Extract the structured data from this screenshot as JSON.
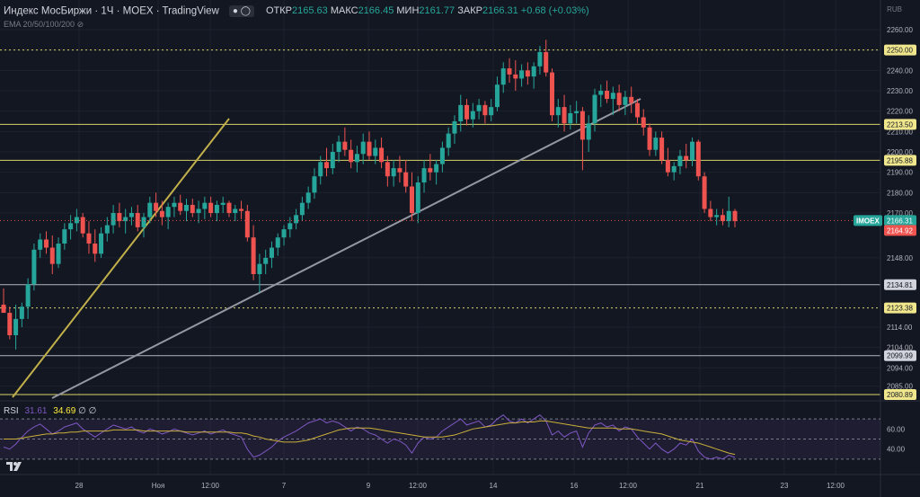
{
  "header": {
    "title": "Индекс МосБиржи · 1Ч · MOEX · TradingView",
    "open_label": "ОТКР",
    "open_value": "2165.63",
    "high_label": "МАКС",
    "high_value": "2166.45",
    "low_label": "МИН",
    "low_value": "2161.77",
    "close_label": "ЗАКР",
    "close_value": "2166.31",
    "change": "+0.68 (+0.03%)",
    "ema_label": "EMA 20/50/100/200"
  },
  "currency": "RUB",
  "rsi": {
    "label": "RSI",
    "value1": "31.61",
    "value2": "34.69",
    "extra": "∅ ∅",
    "ticks": [
      "60.00",
      "40.00"
    ]
  },
  "colors": {
    "background": "#131722",
    "up": "#26a69a",
    "down": "#ef5350",
    "level": "#d9d36b",
    "trend_yellow": "#c2b04a",
    "trend_gray": "#9598a1",
    "rsi_line": "#7e57c2",
    "rsi_ma": "#c9b03a"
  },
  "chart_data": {
    "type": "candlestick",
    "y_ticks": [
      2260,
      2250,
      2240,
      2230,
      2220,
      2210,
      2200,
      2190,
      2180,
      2170,
      2166.31,
      2148,
      2134.81,
      2123.38,
      2114,
      2104,
      2099.99,
      2094,
      2085,
      2080.89
    ],
    "x_labels": [
      "28",
      "Ноя",
      "12:00",
      "7",
      "9",
      "12:00",
      "14",
      "16",
      "12:00",
      "21",
      "23",
      "12:00"
    ],
    "horizontal_levels": [
      {
        "value": 2250.0,
        "style": "dotted",
        "label": "2250.00"
      },
      {
        "value": 2213.5,
        "style": "solid",
        "label": "2213.50"
      },
      {
        "value": 2195.88,
        "style": "solid",
        "label": "2195.88"
      },
      {
        "value": 2134.81,
        "style": "solid-gray",
        "label": "2134.81"
      },
      {
        "value": 2123.38,
        "style": "dotted",
        "label": "2123.38"
      },
      {
        "value": 2099.99,
        "style": "solid-gray",
        "label": "2099.99"
      },
      {
        "value": 2080.89,
        "style": "solid",
        "label": "2080.89"
      }
    ],
    "current_price": {
      "value": 2166.31,
      "symbol": "IMOEX",
      "label": "2166.31"
    },
    "second_price": {
      "value": 2164.92,
      "label": "2164.92"
    },
    "candles": [
      [
        2125,
        2133,
        2121,
        2121
      ],
      [
        2121,
        2124,
        2108,
        2110
      ],
      [
        2110,
        2125,
        2103,
        2118
      ],
      [
        2118,
        2126,
        2114,
        2124
      ],
      [
        2124,
        2138,
        2118,
        2135
      ],
      [
        2135,
        2155,
        2132,
        2152
      ],
      [
        2152,
        2160,
        2148,
        2157
      ],
      [
        2157,
        2161,
        2150,
        2153
      ],
      [
        2153,
        2159,
        2140,
        2145
      ],
      [
        2145,
        2158,
        2143,
        2155
      ],
      [
        2155,
        2165,
        2152,
        2162
      ],
      [
        2162,
        2169,
        2157,
        2165
      ],
      [
        2165,
        2172,
        2161,
        2168
      ],
      [
        2168,
        2170,
        2158,
        2160
      ],
      [
        2160,
        2166,
        2150,
        2155
      ],
      [
        2155,
        2162,
        2146,
        2150
      ],
      [
        2150,
        2163,
        2148,
        2160
      ],
      [
        2160,
        2168,
        2156,
        2164
      ],
      [
        2164,
        2174,
        2160,
        2170
      ],
      [
        2170,
        2175,
        2163,
        2166
      ],
      [
        2166,
        2172,
        2160,
        2168
      ],
      [
        2168,
        2173,
        2164,
        2170
      ],
      [
        2170,
        2174,
        2161,
        2163
      ],
      [
        2163,
        2170,
        2158,
        2168
      ],
      [
        2168,
        2178,
        2165,
        2175
      ],
      [
        2175,
        2180,
        2168,
        2171
      ],
      [
        2171,
        2176,
        2164,
        2168
      ],
      [
        2168,
        2175,
        2162,
        2173
      ],
      [
        2173,
        2178,
        2168,
        2175
      ],
      [
        2175,
        2179,
        2169,
        2171
      ],
      [
        2171,
        2177,
        2166,
        2174
      ],
      [
        2174,
        2177,
        2168,
        2170
      ],
      [
        2170,
        2176,
        2165,
        2172
      ],
      [
        2172,
        2178,
        2167,
        2175
      ],
      [
        2175,
        2178,
        2168,
        2170
      ],
      [
        2170,
        2176,
        2166,
        2174
      ],
      [
        2174,
        2178,
        2170,
        2175
      ],
      [
        2175,
        2176,
        2168,
        2170
      ],
      [
        2170,
        2174,
        2166,
        2172
      ],
      [
        2172,
        2176,
        2167,
        2171
      ],
      [
        2171,
        2174,
        2156,
        2158
      ],
      [
        2158,
        2164,
        2137,
        2140
      ],
      [
        2140,
        2150,
        2131,
        2145
      ],
      [
        2145,
        2152,
        2140,
        2148
      ],
      [
        2148,
        2156,
        2143,
        2153
      ],
      [
        2153,
        2160,
        2149,
        2158
      ],
      [
        2158,
        2164,
        2154,
        2162
      ],
      [
        2162,
        2168,
        2158,
        2165
      ],
      [
        2165,
        2172,
        2162,
        2169
      ],
      [
        2169,
        2178,
        2166,
        2175
      ],
      [
        2175,
        2183,
        2172,
        2180
      ],
      [
        2180,
        2192,
        2177,
        2188
      ],
      [
        2188,
        2198,
        2184,
        2195
      ],
      [
        2195,
        2202,
        2188,
        2192
      ],
      [
        2192,
        2204,
        2189,
        2200
      ],
      [
        2200,
        2208,
        2195,
        2205
      ],
      [
        2205,
        2212,
        2198,
        2201
      ],
      [
        2201,
        2206,
        2192,
        2195
      ],
      [
        2195,
        2203,
        2190,
        2199
      ],
      [
        2199,
        2209,
        2194,
        2205
      ],
      [
        2205,
        2210,
        2196,
        2198
      ],
      [
        2198,
        2206,
        2194,
        2202
      ],
      [
        2202,
        2207,
        2192,
        2195
      ],
      [
        2195,
        2198,
        2183,
        2188
      ],
      [
        2188,
        2196,
        2183,
        2192
      ],
      [
        2192,
        2198,
        2185,
        2190
      ],
      [
        2190,
        2196,
        2180,
        2183
      ],
      [
        2183,
        2190,
        2166,
        2170
      ],
      [
        2170,
        2188,
        2165,
        2185
      ],
      [
        2185,
        2196,
        2180,
        2192
      ],
      [
        2192,
        2199,
        2186,
        2190
      ],
      [
        2190,
        2196,
        2184,
        2194
      ],
      [
        2194,
        2205,
        2190,
        2202
      ],
      [
        2202,
        2212,
        2198,
        2209
      ],
      [
        2209,
        2218,
        2204,
        2215
      ],
      [
        2215,
        2228,
        2210,
        2223
      ],
      [
        2223,
        2226,
        2213,
        2216
      ],
      [
        2216,
        2224,
        2212,
        2220
      ],
      [
        2220,
        2226,
        2216,
        2223
      ],
      [
        2223,
        2225,
        2214,
        2218
      ],
      [
        2218,
        2226,
        2215,
        2222
      ],
      [
        2222,
        2237,
        2220,
        2233
      ],
      [
        2233,
        2244,
        2229,
        2241
      ],
      [
        2241,
        2246,
        2234,
        2238
      ],
      [
        2238,
        2245,
        2230,
        2236
      ],
      [
        2236,
        2243,
        2232,
        2240
      ],
      [
        2240,
        2244,
        2233,
        2237
      ],
      [
        2237,
        2244,
        2231,
        2242
      ],
      [
        2242,
        2252,
        2238,
        2249
      ],
      [
        2249,
        2255,
        2237,
        2239
      ],
      [
        2239,
        2241,
        2215,
        2218
      ],
      [
        2218,
        2226,
        2212,
        2222
      ],
      [
        2222,
        2228,
        2210,
        2214
      ],
      [
        2214,
        2223,
        2211,
        2219
      ],
      [
        2219,
        2225,
        2214,
        2220
      ],
      [
        2220,
        2222,
        2191,
        2206
      ],
      [
        2206,
        2218,
        2200,
        2214
      ],
      [
        2214,
        2231,
        2210,
        2228
      ],
      [
        2228,
        2233,
        2222,
        2230
      ],
      [
        2230,
        2235,
        2224,
        2226
      ],
      [
        2226,
        2232,
        2218,
        2229
      ],
      [
        2229,
        2233,
        2220,
        2223
      ],
      [
        2223,
        2230,
        2218,
        2227
      ],
      [
        2227,
        2232,
        2219,
        2224
      ],
      [
        2224,
        2226,
        2214,
        2217
      ],
      [
        2217,
        2221,
        2208,
        2212
      ],
      [
        2212,
        2214,
        2198,
        2201
      ],
      [
        2201,
        2210,
        2198,
        2207
      ],
      [
        2207,
        2210,
        2194,
        2196
      ],
      [
        2196,
        2202,
        2188,
        2190
      ],
      [
        2190,
        2195,
        2186,
        2193
      ],
      [
        2193,
        2201,
        2189,
        2198
      ],
      [
        2198,
        2204,
        2192,
        2196
      ],
      [
        2196,
        2207,
        2193,
        2205
      ],
      [
        2205,
        2206,
        2186,
        2188
      ],
      [
        2188,
        2190,
        2170,
        2172
      ],
      [
        2172,
        2176,
        2166,
        2168
      ],
      [
        2168,
        2172,
        2164,
        2169
      ],
      [
        2169,
        2172,
        2164,
        2166
      ],
      [
        2166,
        2178,
        2163,
        2171
      ],
      [
        2171,
        2172,
        2163,
        2166
      ]
    ],
    "rsi_values": [
      42,
      40,
      45,
      52,
      58,
      62,
      65,
      60,
      55,
      58,
      62,
      64,
      66,
      60,
      56,
      52,
      56,
      60,
      64,
      62,
      60,
      62,
      58,
      56,
      60,
      58,
      55,
      57,
      60,
      58,
      56,
      54,
      56,
      58,
      55,
      57,
      59,
      56,
      54,
      52,
      40,
      32,
      34,
      38,
      42,
      48,
      52,
      55,
      58,
      62,
      66,
      68,
      70,
      66,
      68,
      66,
      62,
      58,
      62,
      60,
      56,
      54,
      50,
      46,
      50,
      48,
      44,
      36,
      46,
      52,
      50,
      52,
      58,
      62,
      66,
      70,
      64,
      66,
      68,
      62,
      64,
      70,
      74,
      68,
      66,
      70,
      66,
      70,
      74,
      68,
      54,
      58,
      52,
      56,
      58,
      42,
      56,
      64,
      66,
      62,
      64,
      58,
      62,
      60,
      52,
      46,
      40,
      46,
      40,
      36,
      40,
      46,
      44,
      50,
      38,
      32,
      30,
      32,
      30,
      34,
      31.61
    ],
    "rsi_ma_values": [
      50,
      50,
      50,
      51,
      52,
      53,
      54,
      55,
      55,
      56,
      56,
      57,
      57,
      58,
      58,
      58,
      58,
      58,
      59,
      59,
      59,
      59,
      59,
      58,
      58,
      58,
      58,
      58,
      58,
      58,
      57,
      57,
      57,
      57,
      57,
      57,
      57,
      57,
      56,
      56,
      55,
      53,
      52,
      50,
      49,
      48,
      47,
      47,
      47,
      48,
      49,
      51,
      53,
      55,
      57,
      59,
      60,
      61,
      61,
      61,
      61,
      60,
      59,
      58,
      57,
      56,
      55,
      54,
      53,
      52,
      52,
      52,
      52,
      53,
      54,
      56,
      58,
      60,
      61,
      62,
      63,
      64,
      65,
      66,
      66,
      67,
      67,
      67,
      68,
      68,
      67,
      66,
      65,
      64,
      63,
      62,
      61,
      61,
      61,
      61,
      61,
      60,
      60,
      60,
      59,
      58,
      57,
      56,
      55,
      53,
      51,
      49,
      48,
      47,
      46,
      44,
      42,
      40,
      38,
      36,
      34.69
    ],
    "rsi_range": [
      20,
      80
    ],
    "rsi_levels": [
      70,
      50,
      30
    ]
  }
}
